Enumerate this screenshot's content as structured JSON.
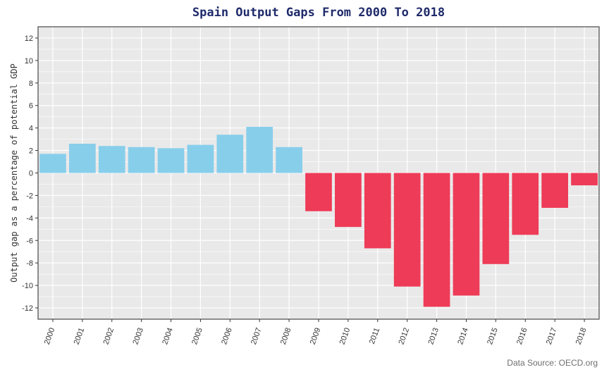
{
  "chart_data": {
    "type": "bar",
    "title": "Spain Output Gaps From 2000 To 2018",
    "xlabel": "",
    "ylabel": "Output gap as a percentage of potential GDP",
    "caption": "Data Source: OECD.org",
    "categories": [
      "2000",
      "2001",
      "2002",
      "2003",
      "2004",
      "2005",
      "2006",
      "2007",
      "2008",
      "2009",
      "2010",
      "2011",
      "2012",
      "2013",
      "2014",
      "2015",
      "2016",
      "2017",
      "2018"
    ],
    "values": [
      1.7,
      2.6,
      2.4,
      2.3,
      2.2,
      2.5,
      3.4,
      4.1,
      2.3,
      -3.4,
      -4.8,
      -6.7,
      -10.1,
      -11.9,
      -10.9,
      -8.1,
      -5.5,
      -3.1,
      -1.1
    ],
    "ylim": [
      -13,
      13
    ],
    "yticks": [
      -12,
      -10,
      -8,
      -6,
      -4,
      -2,
      0,
      2,
      4,
      6,
      8,
      10,
      12
    ],
    "grid": true,
    "colors": {
      "positive": "#87CEEB",
      "negative": "#EE3B57",
      "panel": "#E9E9E9",
      "grid": "#FFFFFF",
      "border": "#555555"
    }
  }
}
